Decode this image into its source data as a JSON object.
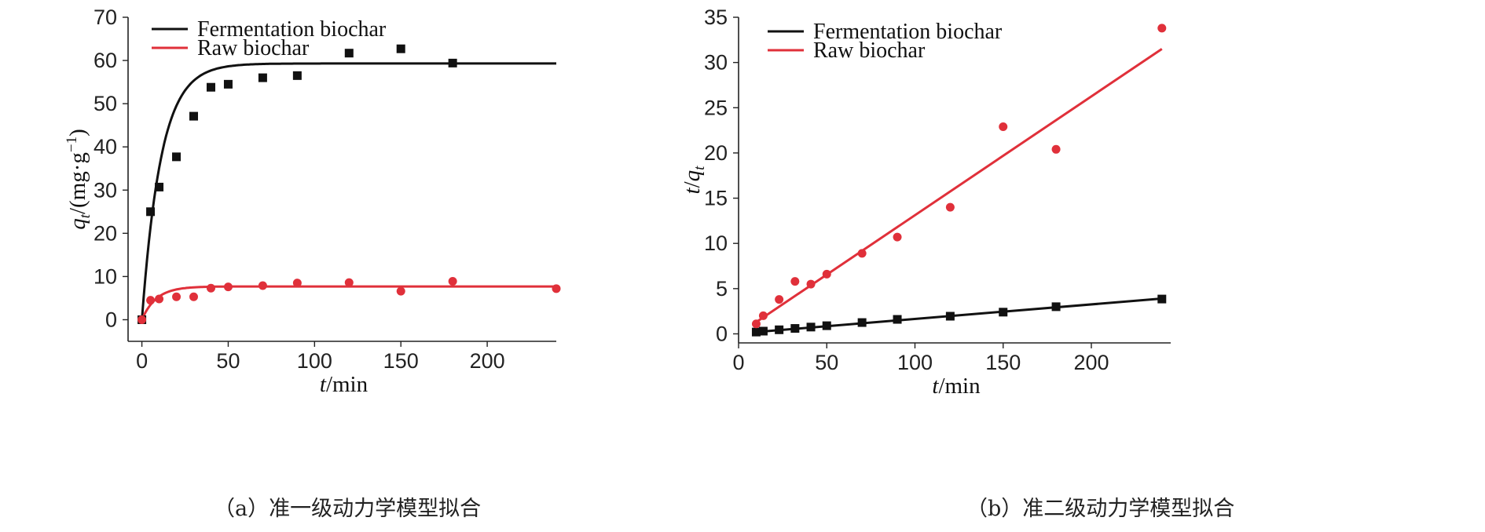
{
  "captions": {
    "a": "（a）准一级动力学模型拟合",
    "b": "（b）准二级动力学模型拟合"
  },
  "colors": {
    "fermentation": "#111111",
    "raw": "#e0303a",
    "axis": "#222222"
  },
  "chart_data": [
    {
      "id": "a",
      "type": "scatter",
      "title": "",
      "xlabel_italic": "t",
      "xlabel_rest": "/min",
      "ylabel_italic": "q",
      "ylabel_sub": "t",
      "ylabel_rest": "/(mg·g",
      "ylabel_sup": "−1",
      "ylabel_close": ")",
      "xlim": [
        -8,
        240
      ],
      "ylim": [
        -5,
        70
      ],
      "xticks": [
        0,
        50,
        100,
        150,
        200
      ],
      "yticks": [
        0,
        10,
        20,
        30,
        40,
        50,
        60,
        70
      ],
      "legend_position": "top-left",
      "series": [
        {
          "name": "Fermentation biochar",
          "color_key": "fermentation",
          "marker": "square",
          "x": [
            0,
            5,
            10,
            20,
            30,
            40,
            50,
            70,
            90,
            120,
            150,
            180
          ],
          "y": [
            0,
            25,
            30.7,
            37.7,
            47.1,
            53.8,
            54.5,
            56.0,
            56.5,
            61.7,
            62.7,
            59.4
          ],
          "fit": {
            "model": "pseudo-first-order",
            "qe": 59.3,
            "k1": 0.09
          }
        },
        {
          "name": "Raw biochar",
          "color_key": "raw",
          "marker": "circle",
          "x": [
            0,
            5,
            10,
            20,
            30,
            40,
            50,
            70,
            90,
            120,
            150,
            180,
            240
          ],
          "y": [
            0,
            4.5,
            4.8,
            5.3,
            5.3,
            7.3,
            7.6,
            7.9,
            8.5,
            8.6,
            6.6,
            8.9,
            7.2
          ],
          "fit": {
            "model": "pseudo-first-order",
            "qe": 7.7,
            "k1": 0.12
          }
        }
      ]
    },
    {
      "id": "b",
      "type": "scatter",
      "title": "",
      "xlabel_italic": "t",
      "xlabel_rest": "/min",
      "ylabel_italic_1": "t",
      "ylabel_slash": "/",
      "ylabel_italic_2": "q",
      "ylabel_sub": "t",
      "xlim": [
        0,
        245
      ],
      "ylim": [
        -1,
        35
      ],
      "xticks": [
        0,
        50,
        100,
        150,
        200
      ],
      "yticks": [
        0,
        5,
        10,
        15,
        20,
        25,
        30,
        35
      ],
      "legend_position": "top-left",
      "series": [
        {
          "name": "Fermentation biochar",
          "color_key": "fermentation",
          "marker": "square",
          "x": [
            10,
            14,
            23,
            32,
            41,
            50,
            70,
            90,
            120,
            150,
            180,
            240
          ],
          "y": [
            0.2,
            0.3,
            0.45,
            0.6,
            0.75,
            0.9,
            1.25,
            1.6,
            1.95,
            2.4,
            3.0,
            3.85
          ],
          "fit": {
            "model": "linear",
            "x0": 10,
            "y0": 0.2,
            "x1": 240,
            "y1": 3.9
          }
        },
        {
          "name": "Raw biochar",
          "color_key": "raw",
          "marker": "circle",
          "x": [
            10,
            14,
            23,
            32,
            41,
            50,
            70,
            90,
            120,
            150,
            180,
            240
          ],
          "y": [
            1.1,
            2.0,
            3.8,
            5.8,
            5.5,
            6.6,
            8.9,
            10.7,
            14.0,
            22.9,
            20.4,
            33.8
          ],
          "fit": {
            "model": "linear",
            "x0": 10,
            "y0": 1.3,
            "x1": 240,
            "y1": 31.5
          }
        }
      ]
    }
  ]
}
